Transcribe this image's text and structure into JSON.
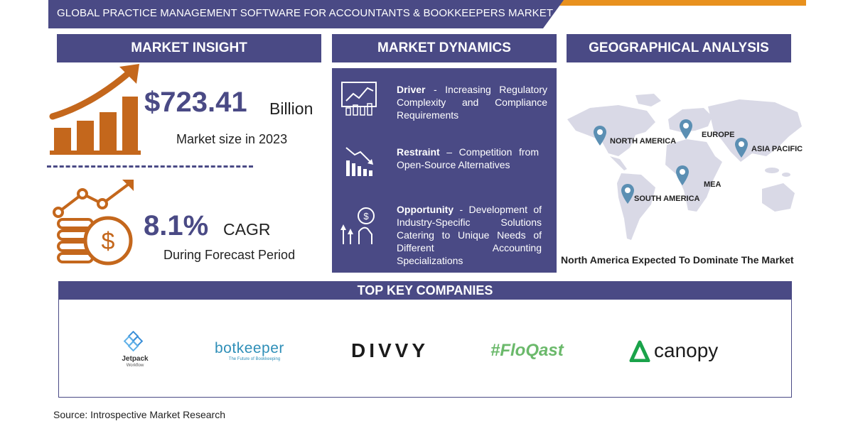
{
  "header": {
    "title": "GLOBAL PRACTICE MANAGEMENT SOFTWARE FOR ACCOUNTANTS & BOOKKEEPERS MARKET REPORT"
  },
  "sections": {
    "insight": "MARKET INSIGHT",
    "dynamics": "MARKET DYNAMICS",
    "geo": "GEOGRAPHICAL ANALYSIS",
    "companies": "TOP KEY COMPANIES"
  },
  "insight": {
    "market_value": "$723.41",
    "market_unit": "Billion",
    "market_caption": "Market size in 2023",
    "cagr_value": "8.1%",
    "cagr_unit": "CAGR",
    "cagr_caption": "During Forecast Period"
  },
  "dynamics": [
    {
      "label": "Driver",
      "text": " - Increasing Regulatory Complexity and Compliance Requirements"
    },
    {
      "label": "Restraint",
      "text": " – Competition from Open-Source Alternatives"
    },
    {
      "label": "Opportunity",
      "text": " - Development of Industry-Specific Solutions Catering to Unique Needs of Different Accounting Specializations"
    }
  ],
  "geo": {
    "regions": [
      "NORTH AMERICA",
      "EUROPE",
      "ASIA PACIFIC",
      "MEA",
      "SOUTH AMERICA"
    ],
    "caption": "North America Expected To Dominate The Market"
  },
  "companies": {
    "jetpack": "Jetpack",
    "jetpack_sub": "Workflow",
    "botkeeper": "botkeeper",
    "botkeeper_sub": "The Future of Bookkeeping",
    "divvy": "DIVVY",
    "floqast": "#FloQast",
    "canopy": "canopy"
  },
  "source": "Source: Introspective Market Research",
  "colors": {
    "primary": "#4a4a85",
    "accent": "#e8911e",
    "icon_orange": "#c4671c",
    "map_gray": "#d9d9e6",
    "pin_blue": "#5b8fb3"
  }
}
